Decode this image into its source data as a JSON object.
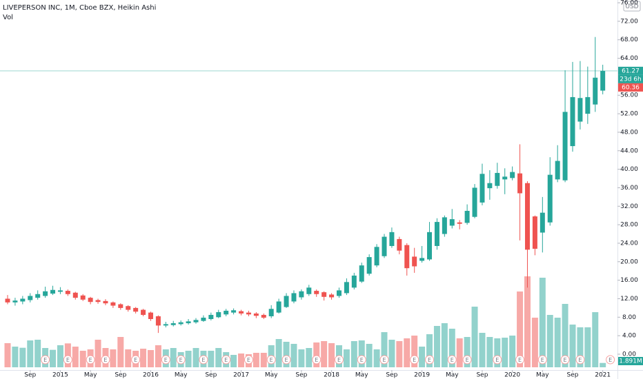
{
  "chart_data": {
    "type": "candlestick",
    "title": "LIVEPERSON INC, 1M, Cboe BZX, Heikin Ashi",
    "volume_title": "Vol",
    "currency": "USD",
    "up_color": "#26a69a",
    "down_color": "#ef5350",
    "volume_up_color": "#92d2cc",
    "volume_down_color": "#f7a9a7",
    "x": [
      "2014-06",
      "2014-07",
      "2014-08",
      "2014-09",
      "2014-10",
      "2014-11",
      "2014-12",
      "2015-01",
      "2015-02",
      "2015-03",
      "2015-04",
      "2015-05",
      "2015-06",
      "2015-07",
      "2015-08",
      "2015-09",
      "2015-10",
      "2015-11",
      "2015-12",
      "2016-01",
      "2016-02",
      "2016-03",
      "2016-04",
      "2016-05",
      "2016-06",
      "2016-07",
      "2016-08",
      "2016-09",
      "2016-10",
      "2016-11",
      "2016-12",
      "2017-01",
      "2017-02",
      "2017-03",
      "2017-04",
      "2017-05",
      "2017-06",
      "2017-07",
      "2017-08",
      "2017-09",
      "2017-10",
      "2017-11",
      "2017-12",
      "2018-01",
      "2018-02",
      "2018-03",
      "2018-04",
      "2018-05",
      "2018-06",
      "2018-07",
      "2018-08",
      "2018-09",
      "2018-10",
      "2018-11",
      "2018-12",
      "2019-01",
      "2019-02",
      "2019-03",
      "2019-04",
      "2019-05",
      "2019-06",
      "2019-07",
      "2019-08",
      "2019-09",
      "2019-10",
      "2019-11",
      "2019-12",
      "2020-01",
      "2020-02",
      "2020-03",
      "2020-04",
      "2020-05",
      "2020-06",
      "2020-07",
      "2020-08",
      "2020-09",
      "2020-10",
      "2020-11",
      "2020-12",
      "2021-01"
    ],
    "open": [
      12.0,
      11.2,
      11.4,
      11.7,
      12.2,
      12.6,
      13.1,
      13.5,
      13.7,
      13.3,
      12.7,
      12.2,
      11.7,
      11.5,
      11.2,
      10.8,
      10.4,
      10.0,
      9.6,
      9.0,
      8.2,
      6.2,
      6.3,
      6.5,
      6.7,
      6.9,
      7.2,
      7.6,
      8.0,
      8.6,
      9.0,
      9.3,
      9.0,
      8.8,
      8.5,
      8.2,
      9.0,
      10.2,
      11.4,
      12.3,
      13.0,
      13.7,
      13.4,
      12.9,
      12.6,
      13.2,
      14.4,
      15.7,
      17.4,
      19.2,
      21.2,
      23.4,
      24.9,
      23.6,
      21.1,
      20.2,
      20.5,
      23.4,
      26.0,
      27.8,
      28.5,
      28.4,
      29.7,
      32.8,
      35.9,
      36.4,
      37.8,
      38.1,
      39.1,
      37.0,
      29.8,
      26.3,
      28.5,
      37.8,
      37.6,
      45.0,
      50.3,
      52.0,
      54.0,
      57.0
    ],
    "high": [
      12.8,
      12.2,
      12.6,
      13.2,
      13.8,
      14.6,
      14.8,
      14.5,
      14.0,
      13.5,
      13.0,
      12.4,
      12.0,
      11.9,
      11.4,
      11.0,
      10.6,
      10.2,
      9.8,
      9.2,
      8.4,
      7.0,
      7.2,
      7.3,
      7.6,
      7.8,
      8.4,
      9.0,
      9.6,
      9.8,
      9.9,
      9.6,
      9.4,
      9.1,
      8.8,
      10.6,
      12.0,
      13.2,
      13.8,
      14.0,
      15.0,
      14.0,
      13.6,
      13.2,
      14.4,
      16.4,
      17.6,
      19.8,
      21.6,
      23.8,
      26.0,
      27.4,
      25.4,
      24.0,
      23.0,
      23.4,
      28.6,
      29.4,
      30.0,
      31.4,
      29.0,
      32.4,
      36.8,
      41.2,
      39.8,
      41.4,
      40.2,
      40.6,
      45.4,
      37.4,
      30.0,
      34.0,
      42.6,
      45.2,
      61.4,
      63.2,
      63.4,
      62.2,
      68.6,
      62.6
    ],
    "low": [
      10.8,
      10.5,
      10.8,
      11.2,
      11.8,
      12.2,
      12.8,
      13.0,
      12.6,
      11.8,
      11.5,
      10.8,
      10.9,
      10.6,
      10.0,
      9.6,
      9.2,
      8.8,
      8.2,
      7.2,
      4.6,
      5.8,
      6.0,
      6.2,
      6.4,
      6.6,
      7.0,
      7.3,
      7.8,
      8.2,
      8.6,
      8.4,
      8.2,
      7.8,
      7.6,
      7.8,
      8.8,
      10.0,
      11.0,
      11.8,
      12.6,
      12.4,
      11.6,
      11.8,
      12.2,
      12.8,
      14.0,
      15.4,
      17.0,
      18.8,
      20.8,
      23.0,
      21.6,
      17.0,
      17.6,
      19.8,
      20.2,
      22.6,
      25.4,
      27.2,
      27.0,
      28.0,
      29.4,
      32.2,
      33.4,
      35.8,
      34.6,
      37.6,
      24.6,
      14.4,
      21.4,
      22.0,
      27.8,
      37.2,
      37.2,
      43.8,
      48.6,
      49.8,
      52.4,
      56.2
    ],
    "close": [
      11.2,
      11.6,
      12.0,
      12.6,
      13.0,
      13.6,
      13.9,
      13.8,
      13.0,
      12.2,
      11.8,
      11.3,
      11.3,
      11.0,
      10.5,
      10.0,
      9.6,
      9.2,
      8.5,
      7.6,
      6.2,
      6.5,
      6.7,
      6.9,
      7.1,
      7.4,
      7.9,
      8.5,
      9.1,
      9.4,
      9.5,
      8.8,
      8.6,
      8.3,
      7.9,
      9.8,
      11.4,
      12.6,
      13.2,
      13.6,
      14.4,
      13.0,
      12.4,
      12.3,
      13.8,
      15.6,
      17.0,
      19.2,
      21.0,
      23.2,
      25.4,
      26.4,
      22.4,
      18.6,
      19.0,
      20.8,
      26.4,
      28.6,
      29.6,
      29.2,
      28.2,
      31.0,
      36.0,
      39.0,
      37.0,
      39.2,
      38.4,
      39.4,
      34.8,
      22.6,
      22.8,
      30.6,
      38.8,
      41.8,
      52.4,
      55.6,
      55.4,
      55.6,
      59.8,
      61.27
    ],
    "volume": [
      10.5,
      9.0,
      8.5,
      11.7,
      12.0,
      8.4,
      7.6,
      9.6,
      10.4,
      9.0,
      7.2,
      7.8,
      12.0,
      8.4,
      7.8,
      13.2,
      7.8,
      7.2,
      8.1,
      7.5,
      9.6,
      7.8,
      8.4,
      6.6,
      7.2,
      8.4,
      7.2,
      7.2,
      8.4,
      6.6,
      5.4,
      6.0,
      5.7,
      6.3,
      6.3,
      9.6,
      12.3,
      11.1,
      10.2,
      7.8,
      8.4,
      10.8,
      11.4,
      10.5,
      9.6,
      7.8,
      11.4,
      11.7,
      10.2,
      7.8,
      15.3,
      12.0,
      11.4,
      12.6,
      13.8,
      9.0,
      14.4,
      18.0,
      19.2,
      16.8,
      12.6,
      13.2,
      26.4,
      15.0,
      13.2,
      12.6,
      12.9,
      13.8,
      33.0,
      39.6,
      21.6,
      39.0,
      22.8,
      21.6,
      27.6,
      18.6,
      17.4,
      17.4,
      24.0,
      1.891
    ],
    "volume_last_label": "1.891M",
    "vlim": [
      0,
      42
    ],
    "ylim": [
      0,
      76.6
    ],
    "yticks": [
      {
        "value": 0,
        "label": "0.00"
      },
      {
        "value": 4,
        "label": "4.00"
      },
      {
        "value": 8,
        "label": "8.00"
      },
      {
        "value": 12,
        "label": "12.00"
      },
      {
        "value": 16,
        "label": "16.00"
      },
      {
        "value": 20,
        "label": "20.00"
      },
      {
        "value": 24,
        "label": "24.00"
      },
      {
        "value": 28,
        "label": "28.00"
      },
      {
        "value": 32,
        "label": "32.00"
      },
      {
        "value": 36,
        "label": "36.00"
      },
      {
        "value": 40,
        "label": "40.00"
      },
      {
        "value": 44,
        "label": "44.00"
      },
      {
        "value": 48,
        "label": "48.00"
      },
      {
        "value": 52,
        "label": "52.00"
      },
      {
        "value": 56,
        "label": "56.00"
      },
      {
        "value": 64,
        "label": "64.00"
      },
      {
        "value": 68,
        "label": "68.00"
      },
      {
        "value": 72,
        "label": "72.00"
      },
      {
        "value": 76,
        "label": "76.00"
      }
    ],
    "xticks": [
      {
        "value": "2014-09",
        "label": "Sep"
      },
      {
        "value": "2015-01",
        "label": "2015"
      },
      {
        "value": "2015-05",
        "label": "May"
      },
      {
        "value": "2015-09",
        "label": "Sep"
      },
      {
        "value": "2016-01",
        "label": "2016"
      },
      {
        "value": "2016-05",
        "label": "May"
      },
      {
        "value": "2016-09",
        "label": "Sep"
      },
      {
        "value": "2017-01",
        "label": "2017"
      },
      {
        "value": "2017-05",
        "label": "May"
      },
      {
        "value": "2017-09",
        "label": "Sep"
      },
      {
        "value": "2018-01",
        "label": "2018"
      },
      {
        "value": "2018-05",
        "label": "May"
      },
      {
        "value": "2018-09",
        "label": "Sep"
      },
      {
        "value": "2019-01",
        "label": "2019"
      },
      {
        "value": "2019-05",
        "label": "May"
      },
      {
        "value": "2019-09",
        "label": "Sep"
      },
      {
        "value": "2020-01",
        "label": "2020"
      },
      {
        "value": "2020-05",
        "label": "May"
      },
      {
        "value": "2020-09",
        "label": "Sep"
      },
      {
        "value": "2021-01",
        "label": "2021"
      }
    ],
    "last_price": 61.27,
    "countdown": "23d 6h",
    "second_price": 60.36,
    "earnings_label": "E",
    "earnings": [
      "2014-11",
      "2015-02",
      "2015-05",
      "2015-07",
      "2015-11",
      "2016-03",
      "2016-05",
      "2016-08",
      "2016-11",
      "2017-02",
      "2017-05",
      "2017-07",
      "2017-11",
      "2018-02",
      "2018-05",
      "2018-08",
      "2018-12",
      "2019-02",
      "2019-05",
      "2019-07",
      "2019-11",
      "2020-02",
      "2020-05",
      "2020-08",
      "2020-10",
      "2021-02"
    ]
  }
}
